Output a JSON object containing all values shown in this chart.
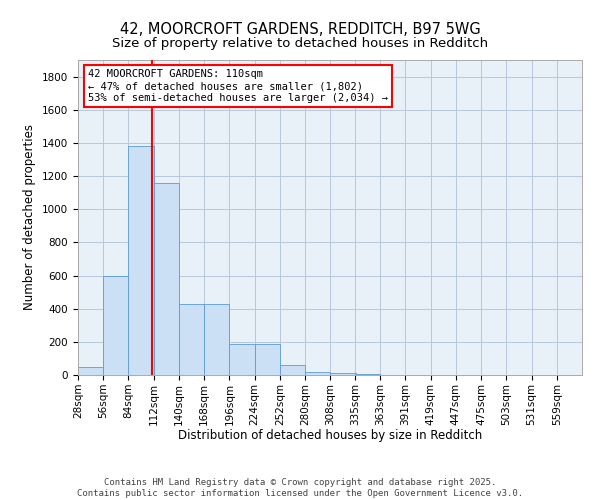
{
  "title": "42, MOORCROFT GARDENS, REDDITCH, B97 5WG",
  "subtitle": "Size of property relative to detached houses in Redditch",
  "xlabel": "Distribution of detached houses by size in Redditch",
  "ylabel": "Number of detached properties",
  "bar_color": "#cce0f5",
  "bar_edge_color": "#5b9bd5",
  "grid_color": "#b8c8dc",
  "background_color": "#e8f0f8",
  "annotation_line1": "42 MOORCROFT GARDENS: 110sqm",
  "annotation_line2": "← 47% of detached houses are smaller (1,802)",
  "annotation_line3": "53% of semi-detached houses are larger (2,034) →",
  "property_line_x": 110,
  "property_line_color": "red",
  "bins": [
    28,
    56,
    84,
    112,
    140,
    168,
    196,
    224,
    252,
    280,
    308,
    335,
    363,
    391,
    419,
    447,
    475,
    503,
    531,
    559,
    587
  ],
  "counts": [
    50,
    600,
    1380,
    1160,
    430,
    430,
    185,
    185,
    60,
    20,
    10,
    5,
    0,
    0,
    0,
    0,
    0,
    0,
    0,
    0
  ],
  "yticks": [
    0,
    200,
    400,
    600,
    800,
    1000,
    1200,
    1400,
    1600,
    1800
  ],
  "ylim": [
    0,
    1900
  ],
  "footer": "Contains HM Land Registry data © Crown copyright and database right 2025.\nContains public sector information licensed under the Open Government Licence v3.0.",
  "title_fontsize": 10.5,
  "subtitle_fontsize": 9.5,
  "axis_label_fontsize": 8.5,
  "tick_fontsize": 7.5,
  "footer_fontsize": 6.5,
  "annotation_fontsize": 7.5
}
